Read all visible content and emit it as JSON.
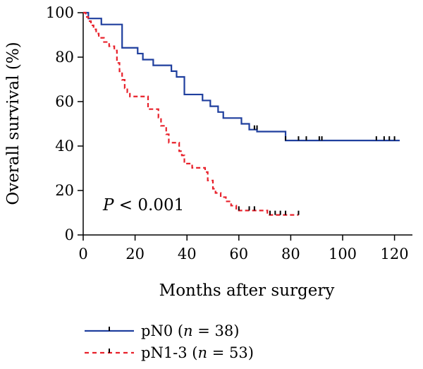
{
  "chart_data": {
    "type": "line",
    "subtype": "kaplan-meier",
    "xlabel": "Months after surgery",
    "ylabel": "Overall survival (%)",
    "xlim": [
      0,
      125
    ],
    "ylim": [
      0,
      100
    ],
    "xticks": [
      "0",
      "20",
      "40",
      "60",
      "80",
      "100",
      "120"
    ],
    "yticks": [
      "0",
      "20",
      "40",
      "60",
      "80",
      "100"
    ],
    "grid": false,
    "annotation": {
      "prefix": "P",
      "text": " < 0.001"
    },
    "legend_position": "bottom-left",
    "series": [
      {
        "name_prefix": "pN0 (",
        "name_n": "n",
        "name_suffix": " = 38)",
        "color": "#1f3f9e",
        "style": "solid",
        "steps": [
          [
            0,
            100
          ],
          [
            2,
            97.4
          ],
          [
            7,
            94.7
          ],
          [
            15,
            84.2
          ],
          [
            21,
            81.6
          ],
          [
            23,
            78.9
          ],
          [
            27,
            76.3
          ],
          [
            34,
            73.7
          ],
          [
            36,
            71.1
          ],
          [
            39,
            63.2
          ],
          [
            46,
            60.5
          ],
          [
            49,
            57.9
          ],
          [
            52,
            55.3
          ],
          [
            54,
            52.6
          ],
          [
            61,
            50
          ],
          [
            64,
            47.4
          ],
          [
            67,
            46.5
          ],
          [
            78,
            42.5
          ],
          [
            122,
            42.5
          ]
        ],
        "censored": [
          [
            66,
            47.4
          ],
          [
            67,
            47.4
          ],
          [
            78,
            42.5
          ],
          [
            83,
            42.5
          ],
          [
            86,
            42.5
          ],
          [
            91,
            42.5
          ],
          [
            92,
            42.5
          ],
          [
            113,
            42.5
          ],
          [
            116,
            42.5
          ],
          [
            118,
            42.5
          ],
          [
            120,
            42.5
          ]
        ]
      },
      {
        "name_prefix": "pN1-3 (",
        "name_n": "n",
        "name_suffix": " = 53)",
        "color": "#e8212b",
        "style": "dashed",
        "steps": [
          [
            0,
            100
          ],
          [
            1,
            98.1
          ],
          [
            2,
            96.2
          ],
          [
            3,
            94.3
          ],
          [
            4,
            92.5
          ],
          [
            5,
            90.6
          ],
          [
            6,
            88.7
          ],
          [
            8,
            86.8
          ],
          [
            10,
            84.9
          ],
          [
            12,
            83
          ],
          [
            13,
            77.4
          ],
          [
            14,
            73.6
          ],
          [
            15,
            69.8
          ],
          [
            16,
            66
          ],
          [
            17,
            64.2
          ],
          [
            18,
            62.3
          ],
          [
            25,
            56.6
          ],
          [
            29,
            52.8
          ],
          [
            30,
            49.1
          ],
          [
            32,
            45.3
          ],
          [
            33,
            41.5
          ],
          [
            37,
            37.7
          ],
          [
            38,
            35.8
          ],
          [
            39,
            32.1
          ],
          [
            42,
            30.2
          ],
          [
            47,
            28.3
          ],
          [
            48,
            24.5
          ],
          [
            50,
            20.8
          ],
          [
            51,
            18.9
          ],
          [
            53,
            17
          ],
          [
            55,
            15.1
          ],
          [
            57,
            13.2
          ],
          [
            59,
            11.3
          ],
          [
            60,
            11
          ],
          [
            71,
            9
          ],
          [
            83,
            9
          ]
        ],
        "censored": [
          [
            60,
            11
          ],
          [
            64,
            11
          ],
          [
            66,
            11
          ],
          [
            72,
            9
          ],
          [
            74,
            9
          ],
          [
            76,
            9
          ],
          [
            78,
            9
          ],
          [
            83,
            9
          ]
        ]
      }
    ]
  }
}
